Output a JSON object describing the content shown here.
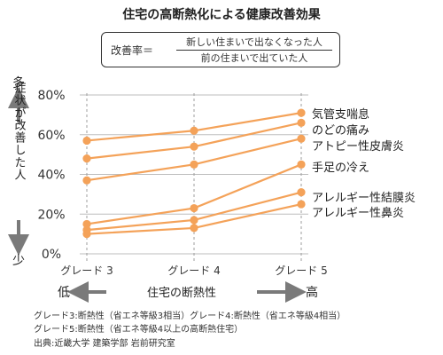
{
  "title": "住宅の高断熱化による健康改善効果",
  "formula": {
    "label": "改善率＝",
    "numerator": "新しい住まいで出なくなった人",
    "denominator": "前の住まいで出ていた人"
  },
  "chart_data": {
    "type": "line",
    "categories": [
      "グレード 3",
      "グレード 4",
      "グレード 5"
    ],
    "x_positions": [
      0,
      1,
      2
    ],
    "ylim": [
      0,
      80
    ],
    "yticks": [
      "0%",
      "20%",
      "40%",
      "60%",
      "80%"
    ],
    "ytick_values": [
      0,
      20,
      40,
      60,
      80
    ],
    "ylabel": "症状が改善した人",
    "ylabel_top": "多",
    "ylabel_bottom": "少",
    "xlabel": "住宅の断熱性",
    "xlabel_left": "低",
    "xlabel_right": "高",
    "grid": true,
    "line_color": "#f4a259",
    "series": [
      {
        "name": "気管支喘息",
        "values": [
          57,
          62,
          71
        ]
      },
      {
        "name": "のどの痛み",
        "values": [
          48,
          54,
          66
        ]
      },
      {
        "name": "アトピー性皮膚炎",
        "values": [
          37,
          45,
          58
        ]
      },
      {
        "name": "手足の冷え",
        "values": [
          15,
          23,
          45
        ]
      },
      {
        "name": "アレルギー性結膜炎",
        "values": [
          12,
          17,
          31
        ]
      },
      {
        "name": "アレルギー性鼻炎",
        "values": [
          10,
          13,
          25
        ]
      }
    ]
  },
  "footnotes": [
    "グレード3:断熱性（省エネ等級3相当）グレード4:断熱性（省エネ等級4相当）",
    "グレード5:断熱性（省エネ等級4以上の高断熱住宅）",
    "出典:近畿大学 建築学部 岩前研究室"
  ]
}
